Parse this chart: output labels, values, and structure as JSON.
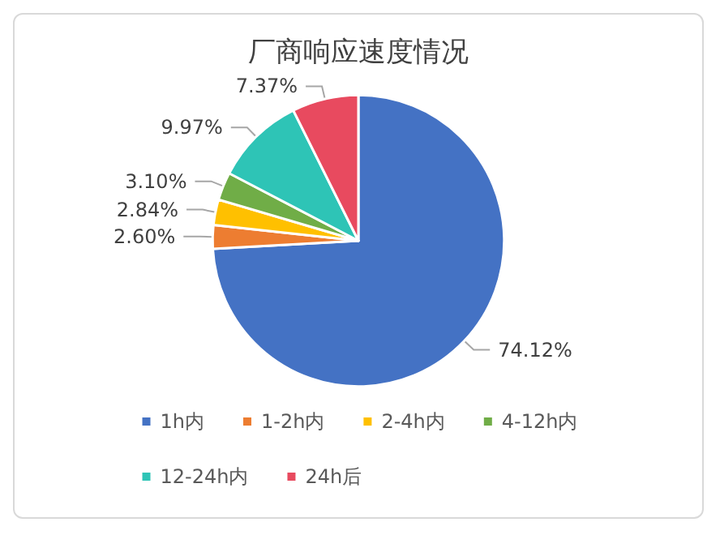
{
  "chart_data": {
    "type": "pie",
    "title": "厂商响应速度情况",
    "categories": [
      "1h内",
      "1-2h内",
      "2-4h内",
      "4-12h内",
      "12-24h内",
      "24h后"
    ],
    "values": [
      74.12,
      2.6,
      2.84,
      3.1,
      9.97,
      7.37
    ],
    "value_labels": [
      "74.12%",
      "2.60%",
      "2.84%",
      "3.10%",
      "9.97%",
      "7.37%"
    ],
    "colors": [
      "#4472c4",
      "#ed7d31",
      "#ffc000",
      "#70ad47",
      "#2ec4b6",
      "#e84a5f"
    ],
    "legend": "bottom"
  }
}
